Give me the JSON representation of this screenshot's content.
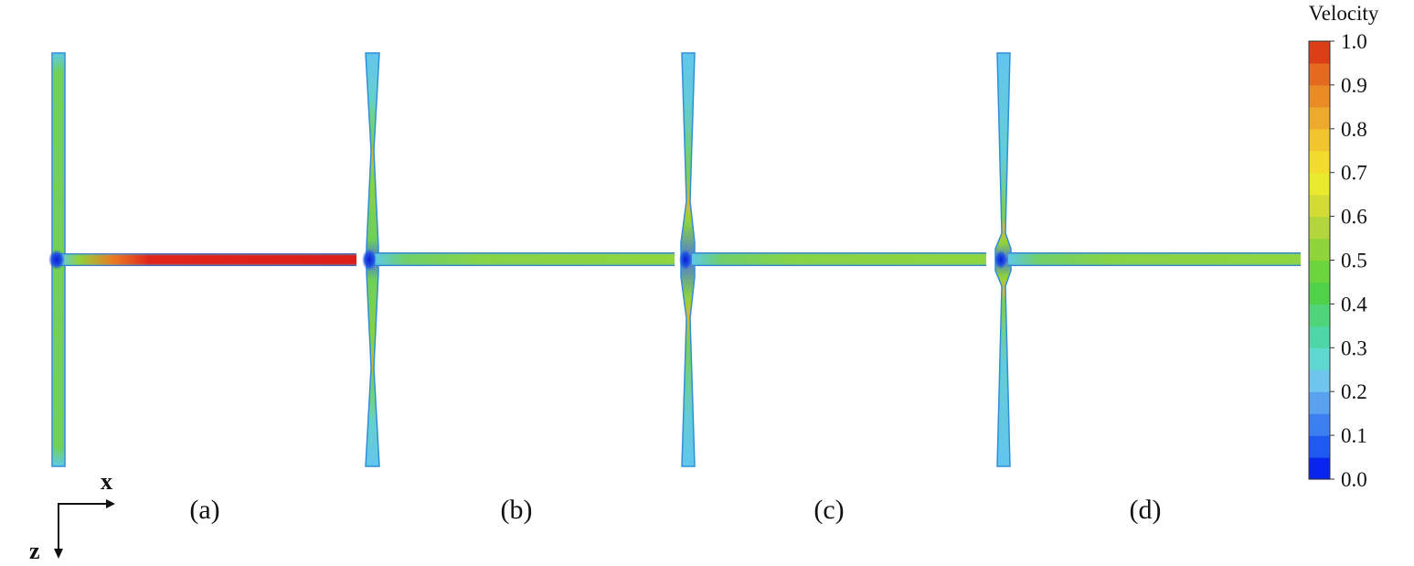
{
  "panels": [
    {
      "label": "(a)",
      "variant": "uniform"
    },
    {
      "label": "(b)",
      "variant": "pinched-far"
    },
    {
      "label": "(c)",
      "variant": "pinched-mid"
    },
    {
      "label": "(d)",
      "variant": "pinched-near"
    }
  ],
  "axes": {
    "x_label": "x",
    "z_label": "z"
  },
  "colorbar": {
    "title": "Velocity",
    "ticks": [
      "0.0",
      "0.1",
      "0.2",
      "0.3",
      "0.4",
      "0.5",
      "0.6",
      "0.7",
      "0.8",
      "0.9",
      "1.0"
    ],
    "colors": [
      "#0a24f0",
      "#1e5af2",
      "#3c7ff0",
      "#5aa2f0",
      "#6ec6ee",
      "#5fd8d2",
      "#4ed6a8",
      "#50d47a",
      "#4fd24a",
      "#6cd43c",
      "#8ed43a",
      "#b2d63c",
      "#d2dc34",
      "#eaea2c",
      "#f4dc2e",
      "#f2c42e",
      "#eeaa2c",
      "#ea8c26",
      "#e46a20",
      "#dc3f18"
    ]
  },
  "colors": {
    "wall": "#2f8fd8",
    "stagnation": "#0b2ad8",
    "cross_channel": "#7ed858",
    "jet_core": "#e0251a",
    "main_channel_light": "#6cc7e6",
    "main_channel_green": "#77d453"
  }
}
